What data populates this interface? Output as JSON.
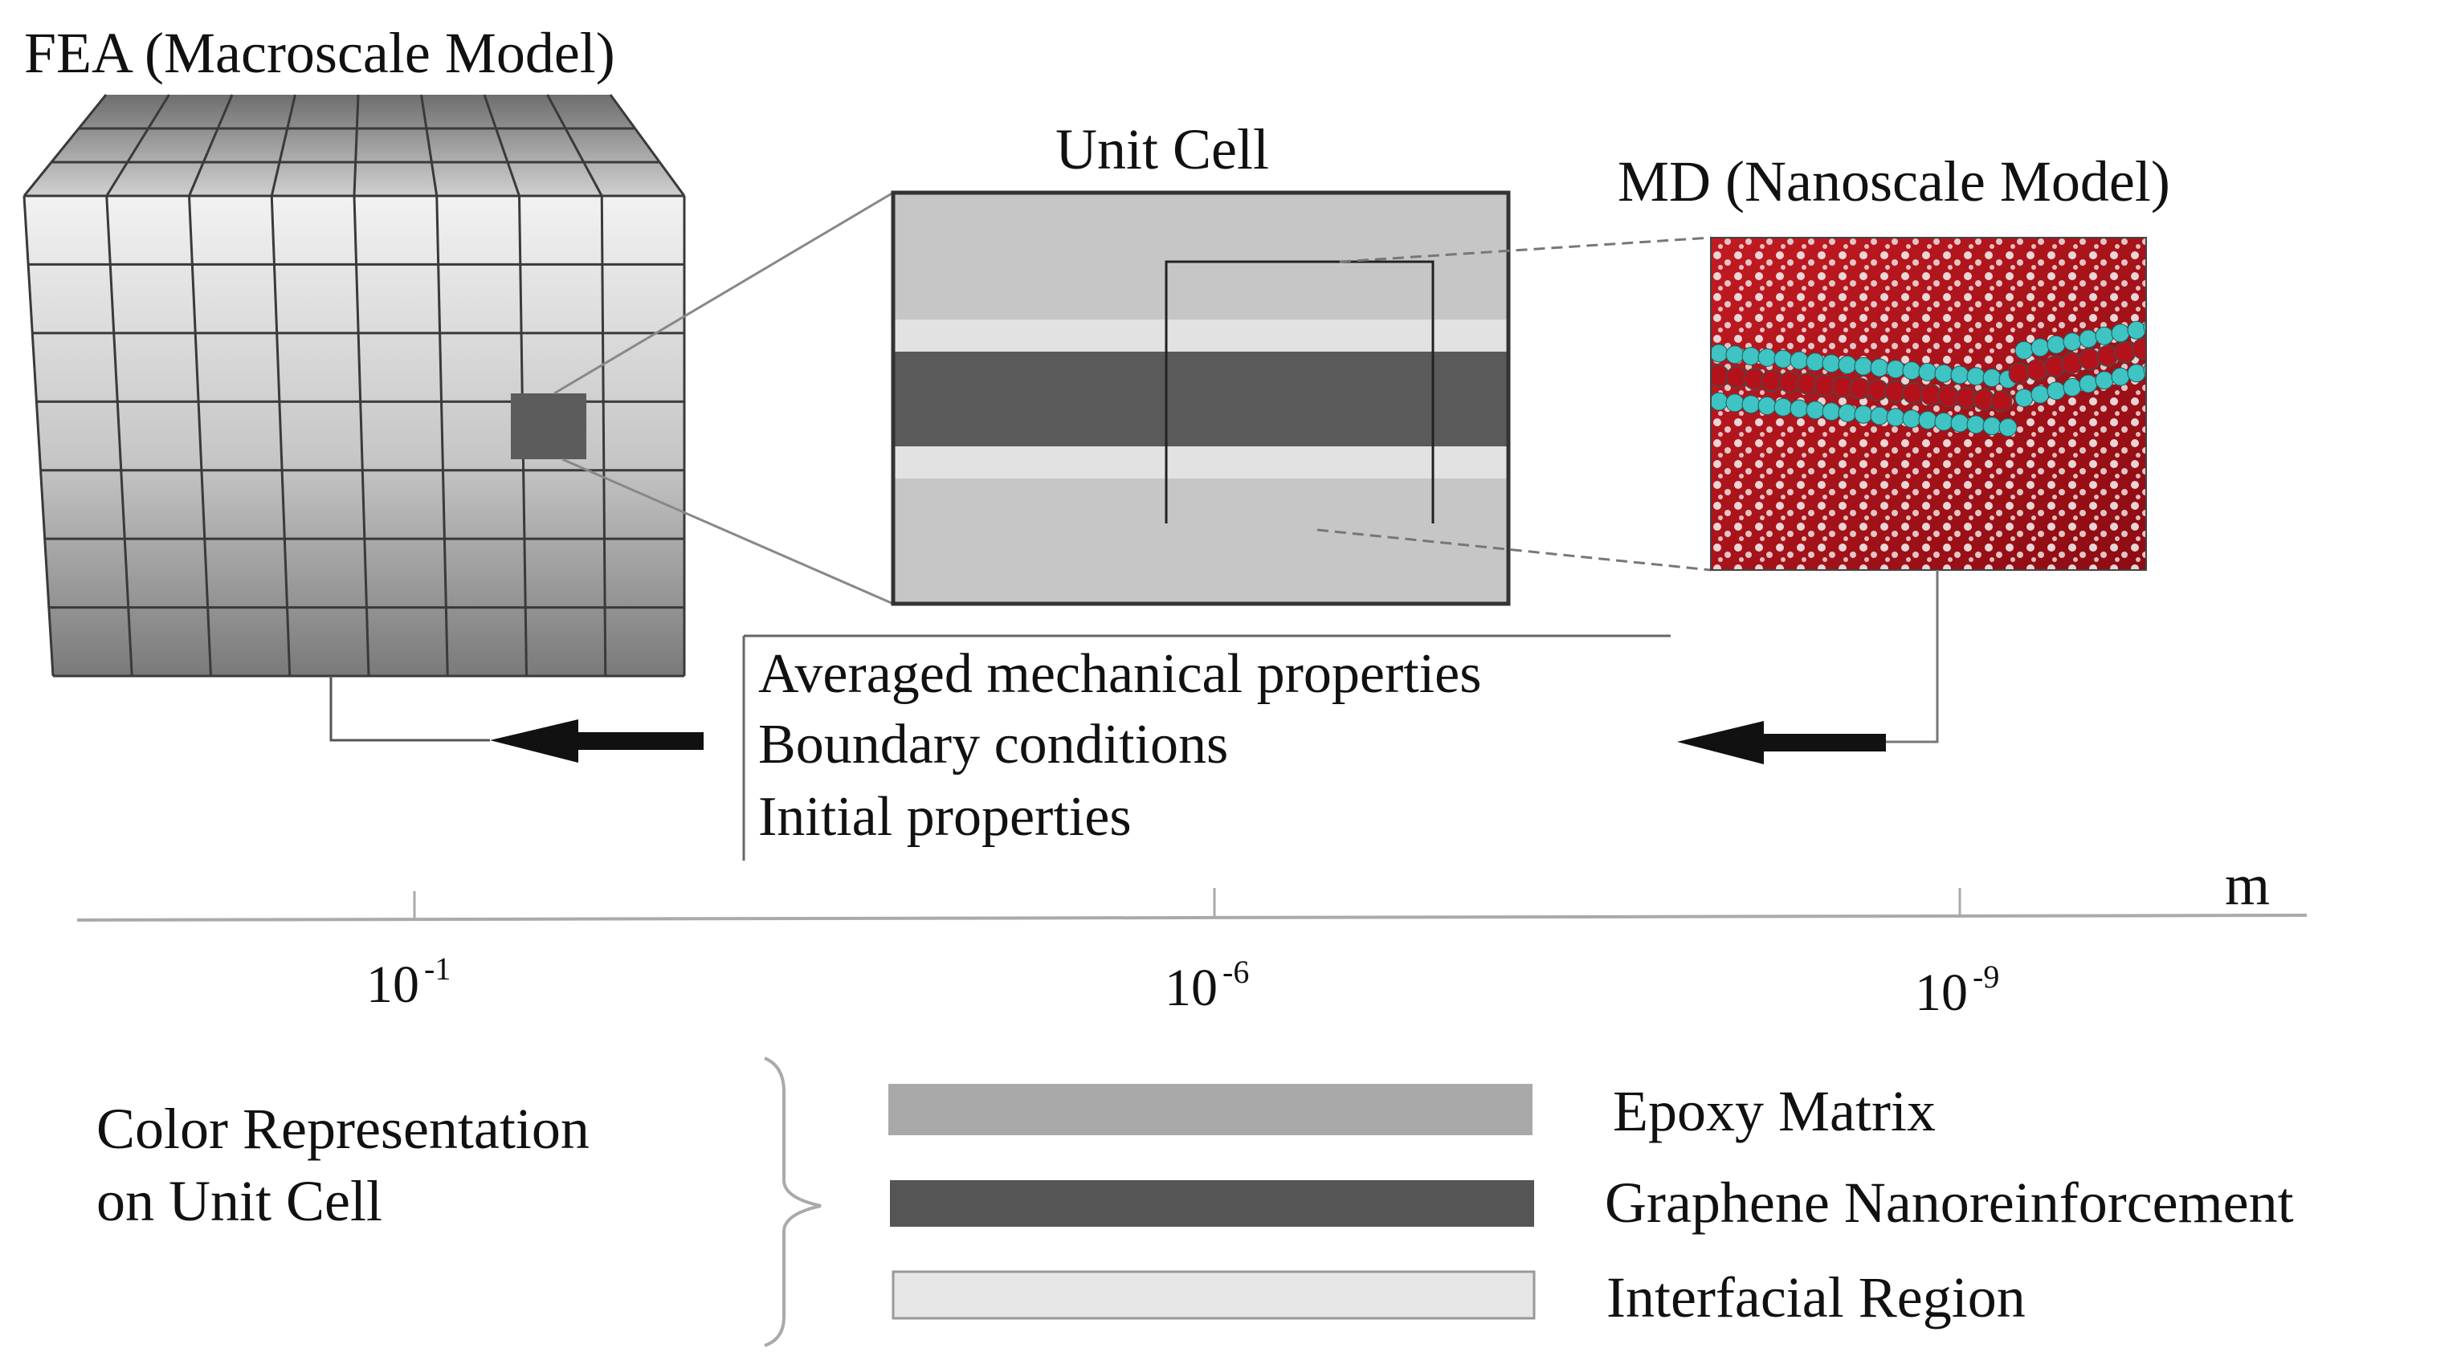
{
  "labels": {
    "fea_title": "FEA (Macroscale Model)",
    "unit_cell_title": "Unit Cell",
    "md_title": "MD (Nanoscale Model)"
  },
  "properties": [
    "Averaged mechanical properties",
    "Boundary conditions",
    "Initial properties"
  ],
  "scale_axis": {
    "unit": "m",
    "ticks": [
      {
        "base": "10",
        "exponent": "-1"
      },
      {
        "base": "10",
        "exponent": "-6"
      },
      {
        "base": "10",
        "exponent": "-9"
      }
    ]
  },
  "legend": {
    "title_line1": "Color Representation",
    "title_line2": "on Unit Cell",
    "items": [
      {
        "label": "Epoxy Matrix",
        "color": "#a9a9a9"
      },
      {
        "label": "Graphene Nanoreinforcement",
        "color": "#555555"
      },
      {
        "label": "Interfacial Region",
        "color": "#e6e6e6"
      }
    ]
  },
  "colors": {
    "epoxy": "#c4c4c4",
    "graphene": "#5a5a5a",
    "interface": "#e0e0e0",
    "atom_red": "#b3121a",
    "atom_cyan": "#3fc3c3"
  }
}
